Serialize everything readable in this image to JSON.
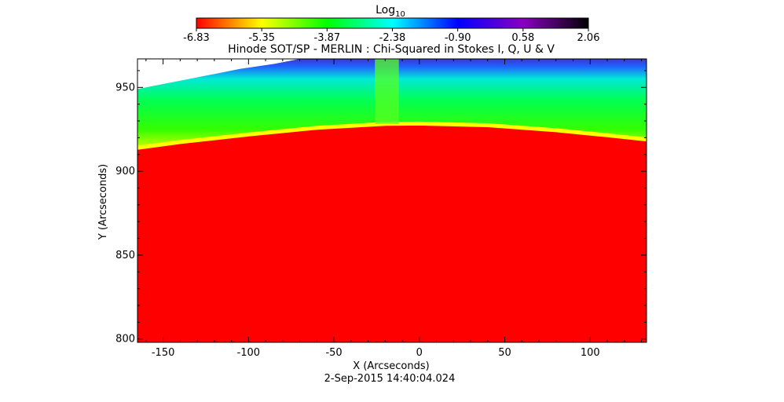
{
  "chart_data": {
    "type": "heatmap",
    "title": "Hinode SOT/SP - MERLIN : Chi-Squared in Stokes I, Q, U & V",
    "xlabel": "X (Arcseconds)",
    "ylabel": "Y (Arcseconds)",
    "date_label": "2-Sep-2015 14:40:04.024",
    "xlim": [
      -165,
      133
    ],
    "ylim": [
      798,
      967
    ],
    "x_ticks": [
      -150,
      -100,
      -50,
      0,
      50,
      100
    ],
    "y_ticks": [
      800,
      850,
      900,
      950
    ],
    "colorbar": {
      "label_base": "Log",
      "label_sub": "10",
      "range": [
        -6.83,
        2.06
      ],
      "ticks": [
        "-6.83",
        "-5.35",
        "-3.87",
        "-2.38",
        "-0.90",
        "0.58",
        "2.06"
      ],
      "colormap": [
        "#ff0000",
        "#ffff00",
        "#00ff00",
        "#00ffff",
        "#0000ff",
        "#8a00c0",
        "#000000"
      ]
    },
    "limb_y_at_x": {
      "x": [
        -165,
        -140,
        -100,
        -60,
        -20,
        0,
        40,
        80,
        110,
        133
      ],
      "y": [
        913,
        916.5,
        921,
        925,
        927.3,
        927.5,
        926.5,
        923.5,
        920.5,
        918
      ]
    },
    "off_limb_log_chi2": {
      "near_limb": -4.1,
      "mid": -2.6,
      "top": -1.0
    },
    "on_disk_log_chi2": -6.83,
    "vertical_band_x": [
      -26,
      -12
    ]
  }
}
